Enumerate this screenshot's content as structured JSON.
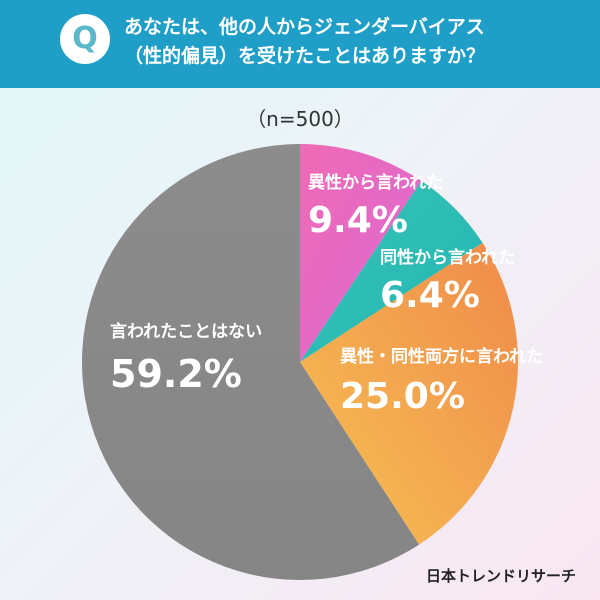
{
  "header": {
    "question_lines": [
      "あなたは、他の人からジェンダーバイアス",
      "（性的偏見）を受けたことはありますか？"
    ]
  },
  "q_icon": "Q",
  "sample_label": "（n=500）",
  "brand": "日本トレンドリサーチ",
  "colors": {
    "header": "#1f9fc8",
    "slice_1": "#ea63c0",
    "slice_2": "#2ebfb2",
    "slice_3": "#f2a84a",
    "slice_4": "#8a8a8a"
  },
  "chart_data": {
    "type": "pie",
    "title": "",
    "slices": [
      {
        "label": "異性から言われた",
        "value": 9.4,
        "display": "9.4%"
      },
      {
        "label": "同性から言われた",
        "value": 6.4,
        "display": "6.4%"
      },
      {
        "label": "異性・同性両方に言われた",
        "value": 25.0,
        "display": "25.0%"
      },
      {
        "label": "言われたことはない",
        "value": 59.2,
        "display": "59.2%"
      }
    ]
  }
}
